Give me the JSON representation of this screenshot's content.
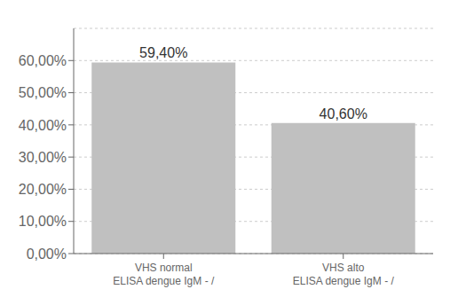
{
  "chart_data": {
    "type": "bar",
    "categories": [
      "VHS normal\nELISA dengue IgM - /",
      "VHS alto\nELISA dengue IgM - /"
    ],
    "values": [
      0.594,
      0.406
    ],
    "value_labels": [
      "59,40%",
      "40,60%"
    ],
    "data_labels": true,
    "color": "#C0C0C0",
    "ylim": [
      0.0,
      0.7
    ],
    "yticks": [
      {
        "value": 0.0,
        "label": "0,00%"
      },
      {
        "value": 0.1,
        "label": "10,00%"
      },
      {
        "value": 0.2,
        "label": "20,00%"
      },
      {
        "value": 0.3,
        "label": "30,00%"
      },
      {
        "value": 0.4,
        "label": "40,00%"
      },
      {
        "value": 0.5,
        "label": "50,00%"
      },
      {
        "value": 0.6,
        "label": "60,00%"
      }
    ],
    "grid": true
  }
}
